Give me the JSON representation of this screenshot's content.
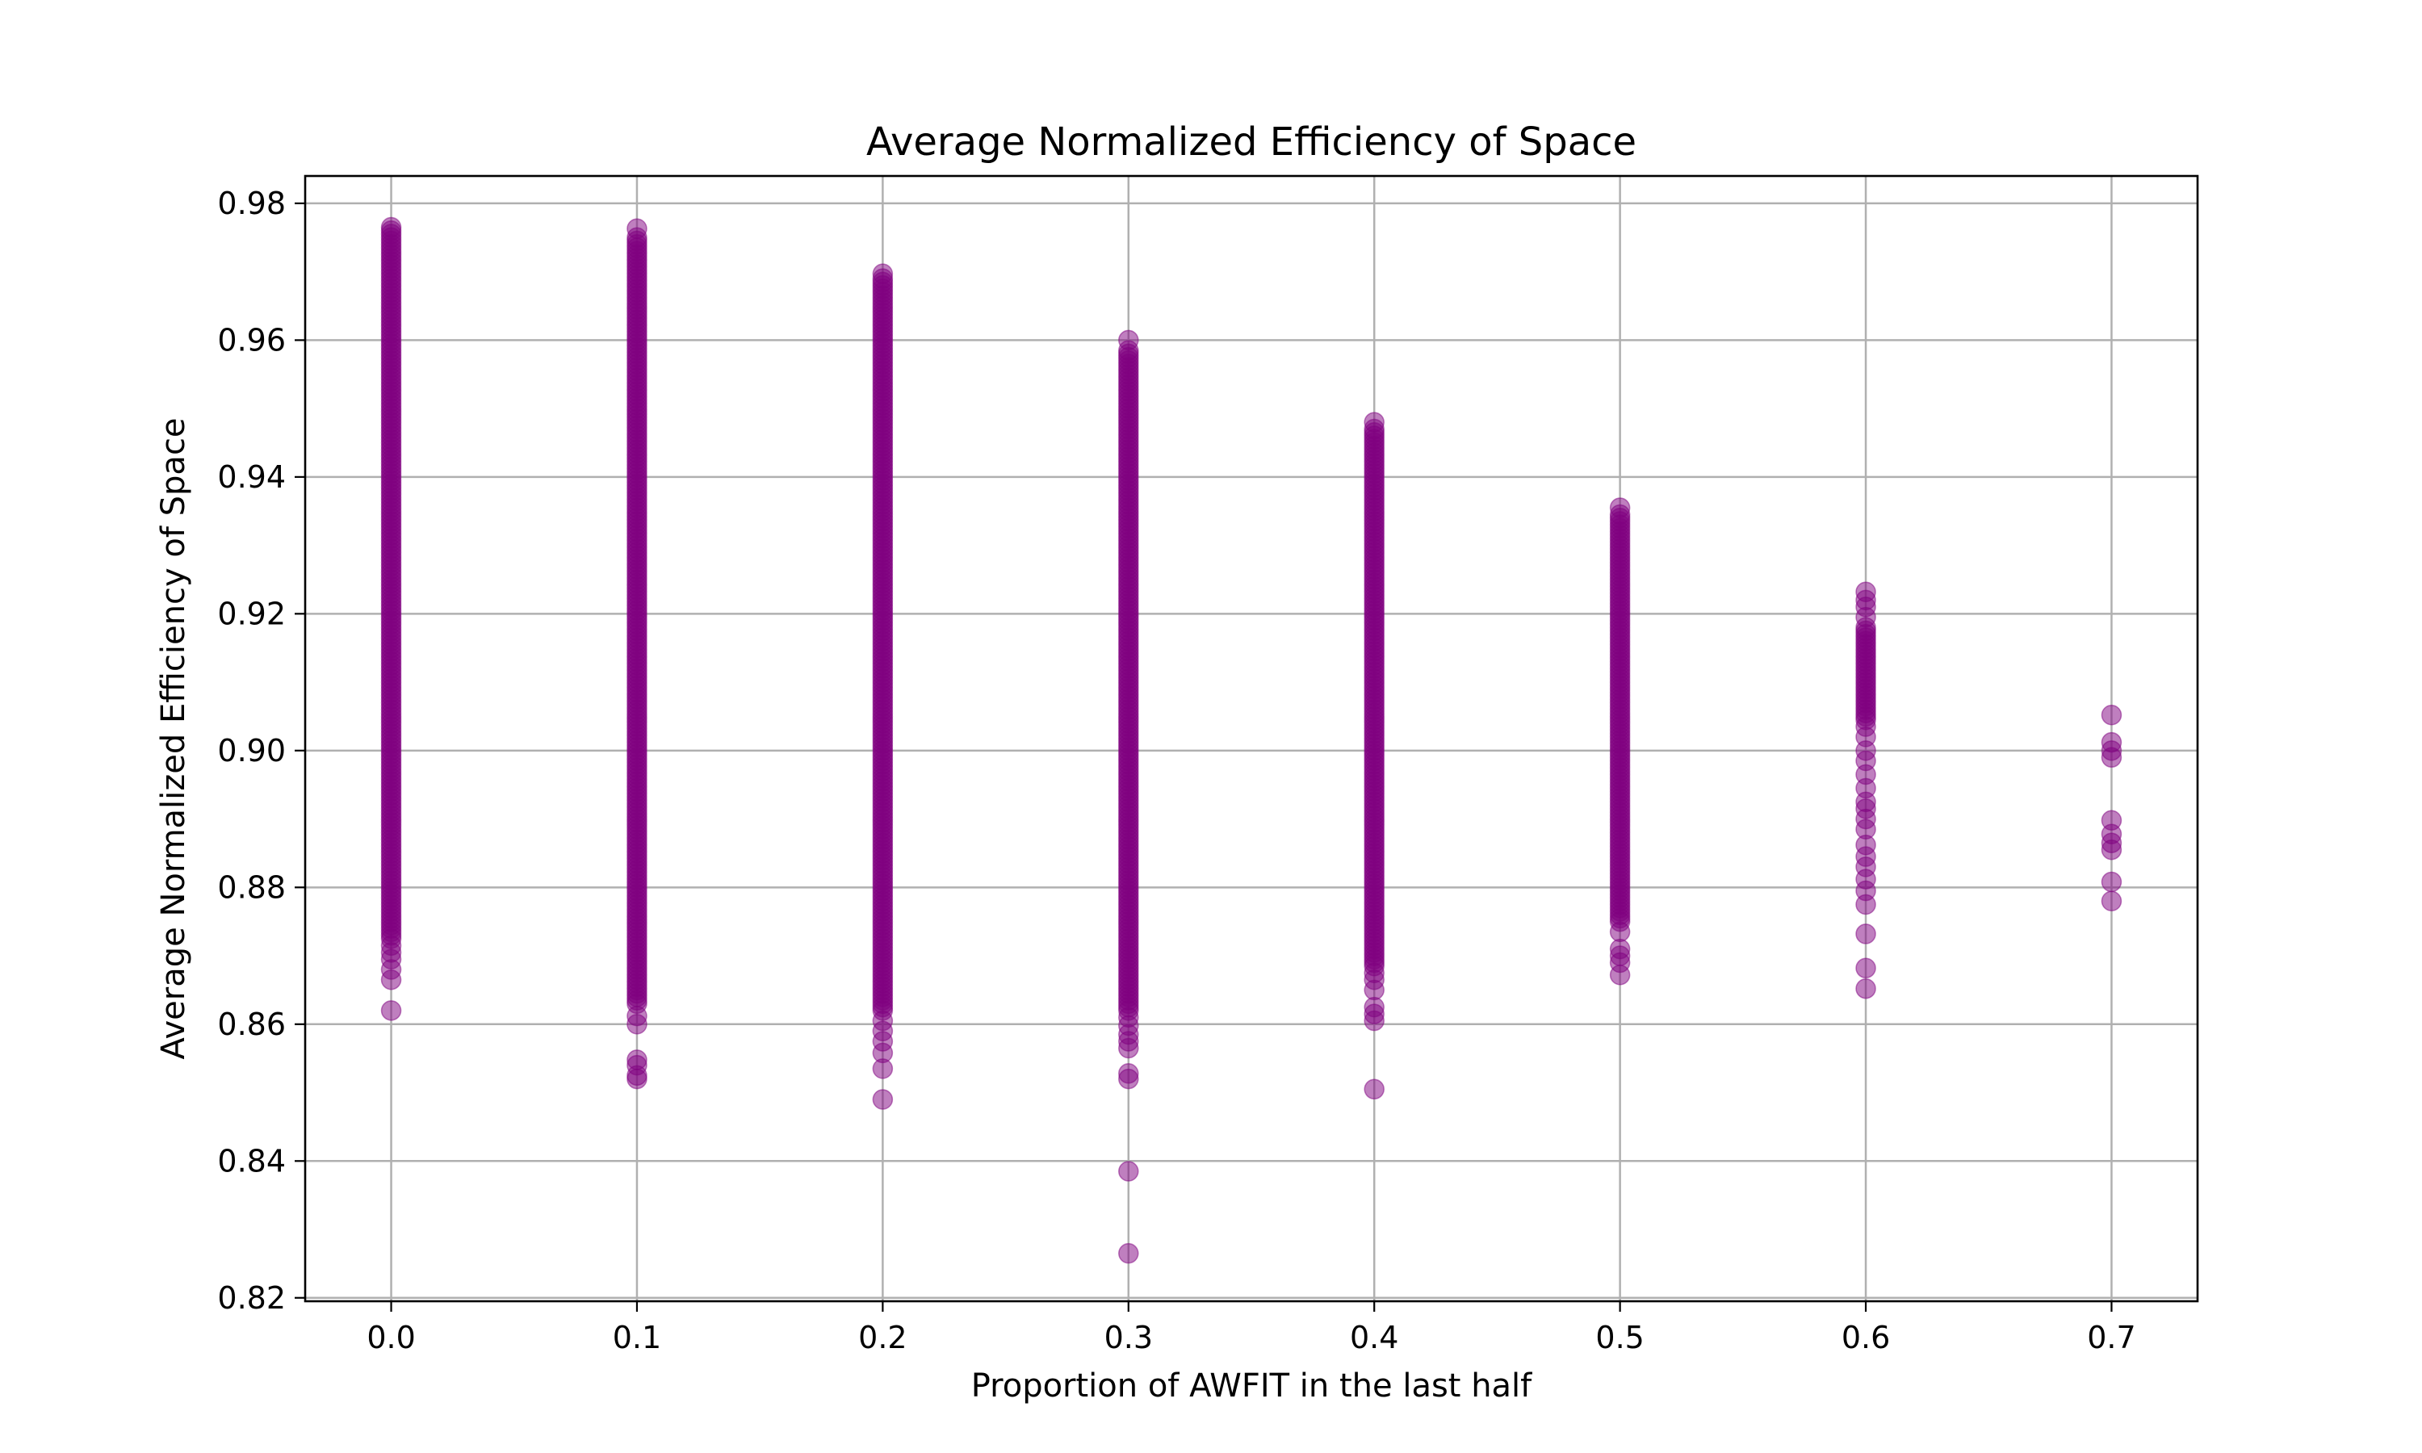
{
  "chart_data": {
    "type": "scatter",
    "title": "Average Normalized Efficiency of Space",
    "xlabel": "Proportion of AWFIT in the last half",
    "ylabel": "Average Normalized Efficiency of Space",
    "xlim": [
      -0.035,
      0.735
    ],
    "ylim": [
      0.8195,
      0.984
    ],
    "x_ticks": [
      0.0,
      0.1,
      0.2,
      0.3,
      0.4,
      0.5,
      0.6,
      0.7
    ],
    "x_tick_labels": [
      "0.0",
      "0.1",
      "0.2",
      "0.3",
      "0.4",
      "0.5",
      "0.6",
      "0.7"
    ],
    "y_ticks": [
      0.82,
      0.84,
      0.86,
      0.88,
      0.9,
      0.92,
      0.94,
      0.96,
      0.98
    ],
    "y_tick_labels": [
      "0.82",
      "0.84",
      "0.86",
      "0.88",
      "0.90",
      "0.92",
      "0.94",
      "0.96",
      "0.98"
    ],
    "grid": true,
    "legend": "none",
    "marker_color": "#800080",
    "marker_alpha": 0.5,
    "groups": [
      {
        "x": 0.0,
        "dense_min": 0.8725,
        "dense_max": 0.9765,
        "outliers": [
          0.862,
          0.8665,
          0.868,
          0.8695,
          0.8705,
          0.8715
        ]
      },
      {
        "x": 0.1,
        "dense_min": 0.863,
        "dense_max": 0.975,
        "outliers": [
          0.9763,
          0.852,
          0.8525,
          0.854,
          0.8548,
          0.86,
          0.8612
        ]
      },
      {
        "x": 0.2,
        "dense_min": 0.862,
        "dense_max": 0.969,
        "outliers": [
          0.9697,
          0.849,
          0.8535,
          0.8558,
          0.8575,
          0.859,
          0.8605
        ]
      },
      {
        "x": 0.3,
        "dense_min": 0.862,
        "dense_max": 0.9585,
        "outliers": [
          0.96,
          0.8265,
          0.8385,
          0.852,
          0.8528,
          0.8565,
          0.8575,
          0.8585,
          0.8598,
          0.861
        ]
      },
      {
        "x": 0.4,
        "dense_min": 0.8685,
        "dense_max": 0.947,
        "outliers": [
          0.948,
          0.8505,
          0.8605,
          0.8615,
          0.8625,
          0.865,
          0.8665,
          0.8675
        ]
      },
      {
        "x": 0.5,
        "dense_min": 0.875,
        "dense_max": 0.9345,
        "outliers": [
          0.9355,
          0.8672,
          0.869,
          0.87,
          0.871,
          0.8735
        ]
      },
      {
        "x": 0.6,
        "dense_min": 0.9045,
        "dense_max": 0.918,
        "outliers": [
          0.9232,
          0.922,
          0.921,
          0.9195,
          0.9035,
          0.902,
          0.9,
          0.8985,
          0.8965,
          0.8945,
          0.8925,
          0.8915,
          0.89,
          0.8885,
          0.8862,
          0.8845,
          0.883,
          0.8812,
          0.8795,
          0.8775,
          0.8732,
          0.8682,
          0.8652
        ]
      },
      {
        "x": 0.7,
        "dense_min": null,
        "dense_max": null,
        "outliers": [
          0.9052,
          0.9012,
          0.9,
          0.899,
          0.8898,
          0.8878,
          0.8865,
          0.8855,
          0.8808,
          0.878
        ]
      }
    ]
  }
}
